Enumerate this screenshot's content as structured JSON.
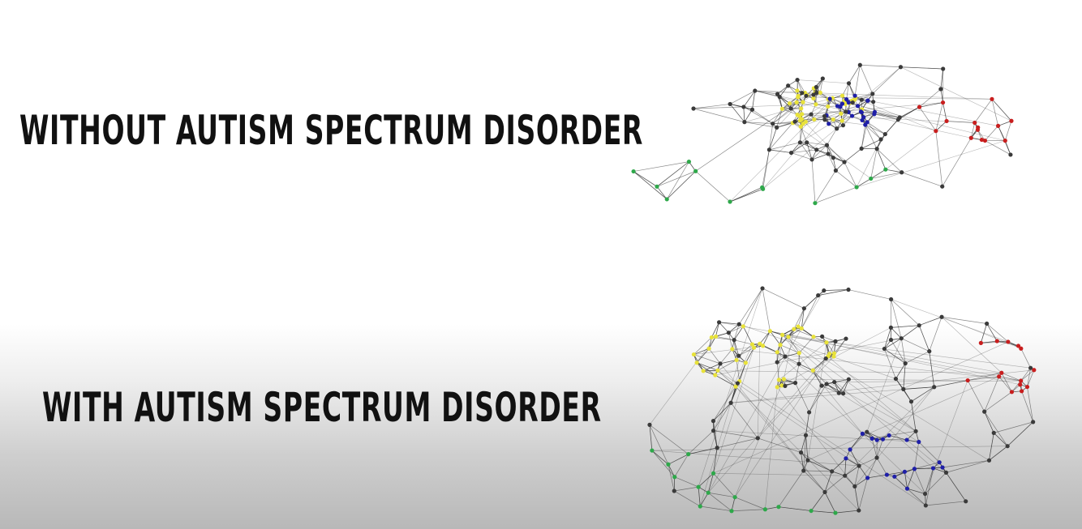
{
  "captions": {
    "without": "WITHOUT AUTISM SPECTRUM DISORDER",
    "with": "WITH AUTISM SPECTRUM DISORDER"
  },
  "colors": {
    "edge": "#2a2a2a",
    "node_default": "#3a3a3a",
    "module_yellow": "#e8e23a",
    "module_blue": "#1f1fa8",
    "module_red": "#c81e1e",
    "module_green": "#2ea84a"
  }
}
